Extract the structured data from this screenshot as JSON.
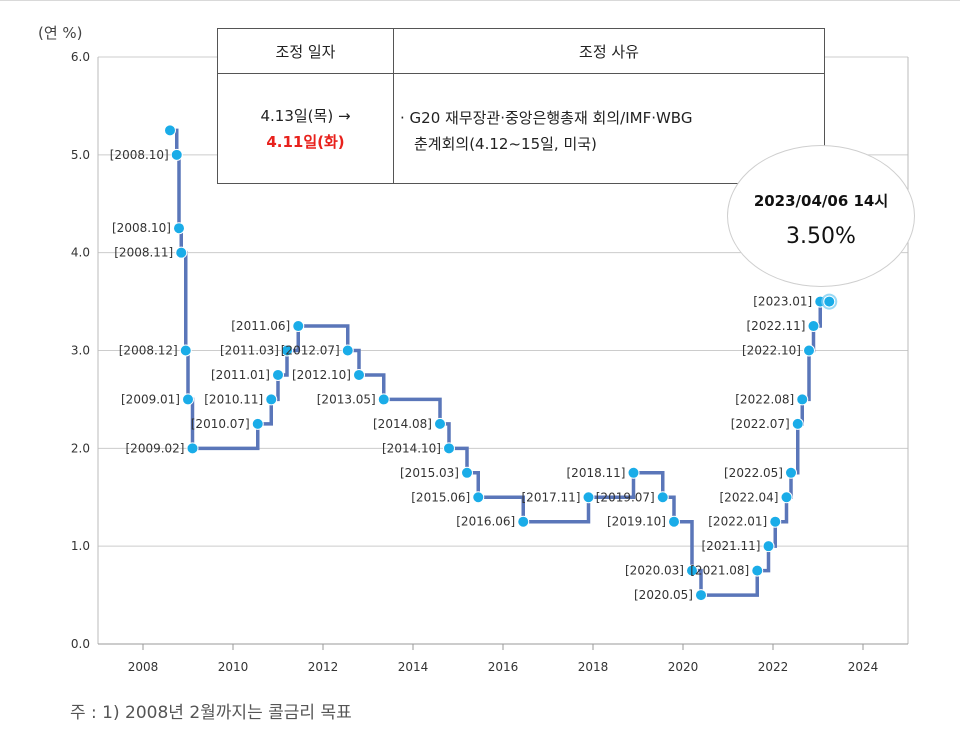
{
  "unit_label": "(연 %)",
  "footnote": "주 : 1) 2008년 2월까지는 콜금리 목표",
  "table": {
    "header_date": "조정 일자",
    "header_reason": "조정 사유",
    "date_original": "4.13일(목) →",
    "date_new": "4.11일(화)",
    "reason_line1": "· G20 재무장관·중앙은행총재 회의/IMF·WBG",
    "reason_line2": "춘계회의(4.12~15일, 미국)"
  },
  "callout": {
    "time": "2023/04/06 14시",
    "rate": "3.50%"
  },
  "chart_data": {
    "type": "line",
    "step": true,
    "title": "",
    "xlabel": "",
    "ylabel": "(연 %)",
    "xlim": [
      2007,
      2025
    ],
    "ylim": [
      0,
      6
    ],
    "x_ticks": [
      "2008",
      "2010",
      "2012",
      "2014",
      "2016",
      "2018",
      "2020",
      "2022",
      "2024"
    ],
    "y_ticks": [
      "0.0",
      "1.0",
      "2.0",
      "3.0",
      "4.0",
      "5.0",
      "6.0"
    ],
    "grid": "horizontal",
    "colors": {
      "line": "#5a76b9",
      "point": "#1aace8",
      "grid": "#cccccc"
    },
    "series": [
      {
        "points": [
          {
            "x": 2008.6,
            "y": 5.25,
            "label": ""
          },
          {
            "x": 2008.75,
            "y": 5.0,
            "label": "[2008.10]"
          },
          {
            "x": 2008.8,
            "y": 4.25,
            "label": "[2008.10]"
          },
          {
            "x": 2008.85,
            "y": 4.0,
            "label": "[2008.11]"
          },
          {
            "x": 2008.95,
            "y": 3.0,
            "label": "[2008.12]"
          },
          {
            "x": 2009.0,
            "y": 2.5,
            "label": "[2009.01]"
          },
          {
            "x": 2009.1,
            "y": 2.0,
            "label": "[2009.02]"
          },
          {
            "x": 2010.55,
            "y": 2.25,
            "label": "[2010.07]"
          },
          {
            "x": 2010.85,
            "y": 2.5,
            "label": "[2010.11]"
          },
          {
            "x": 2011.0,
            "y": 2.75,
            "label": "[2011.01]"
          },
          {
            "x": 2011.2,
            "y": 3.0,
            "label": "[2011.03]"
          },
          {
            "x": 2011.45,
            "y": 3.25,
            "label": "[2011.06]"
          },
          {
            "x": 2012.55,
            "y": 3.0,
            "label": "[2012.07]"
          },
          {
            "x": 2012.8,
            "y": 2.75,
            "label": "[2012.10]"
          },
          {
            "x": 2013.35,
            "y": 2.5,
            "label": "[2013.05]"
          },
          {
            "x": 2014.6,
            "y": 2.25,
            "label": "[2014.08]"
          },
          {
            "x": 2014.8,
            "y": 2.0,
            "label": "[2014.10]"
          },
          {
            "x": 2015.2,
            "y": 1.75,
            "label": "[2015.03]"
          },
          {
            "x": 2015.45,
            "y": 1.5,
            "label": "[2015.06]"
          },
          {
            "x": 2016.45,
            "y": 1.25,
            "label": "[2016.06]"
          },
          {
            "x": 2017.9,
            "y": 1.5,
            "label": "[2017.11]"
          },
          {
            "x": 2018.9,
            "y": 1.75,
            "label": "[2018.11]"
          },
          {
            "x": 2019.55,
            "y": 1.5,
            "label": "[2019.07]"
          },
          {
            "x": 2019.8,
            "y": 1.25,
            "label": "[2019.10]"
          },
          {
            "x": 2020.2,
            "y": 0.75,
            "label": "[2020.03]"
          },
          {
            "x": 2020.4,
            "y": 0.5,
            "label": "[2020.05]"
          },
          {
            "x": 2021.65,
            "y": 0.75,
            "label": "[2021.08]"
          },
          {
            "x": 2021.9,
            "y": 1.0,
            "label": "[2021.11]"
          },
          {
            "x": 2022.05,
            "y": 1.25,
            "label": "[2022.01]"
          },
          {
            "x": 2022.3,
            "y": 1.5,
            "label": "[2022.04]"
          },
          {
            "x": 2022.4,
            "y": 1.75,
            "label": "[2022.05]"
          },
          {
            "x": 2022.55,
            "y": 2.25,
            "label": "[2022.07]"
          },
          {
            "x": 2022.65,
            "y": 2.5,
            "label": "[2022.08]"
          },
          {
            "x": 2022.8,
            "y": 3.0,
            "label": "[2022.10]"
          },
          {
            "x": 2022.9,
            "y": 3.25,
            "label": "[2022.11]"
          },
          {
            "x": 2023.05,
            "y": 3.5,
            "label": "[2023.01]"
          },
          {
            "x": 2023.25,
            "y": 3.5,
            "label": ""
          }
        ]
      }
    ]
  }
}
